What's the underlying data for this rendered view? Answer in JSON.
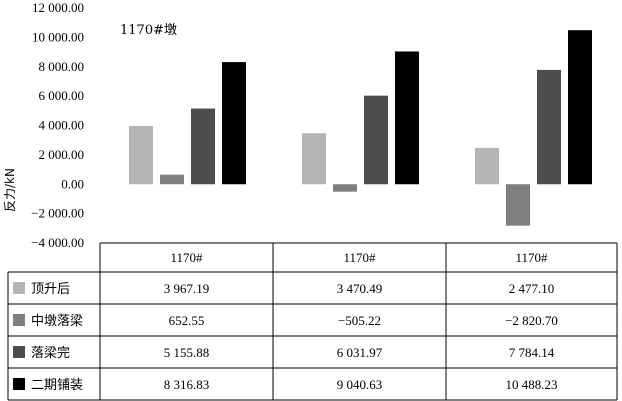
{
  "chart_data": {
    "type": "bar",
    "title": "",
    "annotation": "1170#墩",
    "ylabel": "反力/kN",
    "xlabel": "",
    "ylim": [
      -4000,
      12000
    ],
    "yticks": [
      "12 000.00",
      "10 000.00",
      "8 000.00",
      "6 000.00",
      "4 000.00",
      "2 000.00",
      "0.00",
      "−2 000.00",
      "−4 000.00"
    ],
    "ytick_values": [
      12000,
      10000,
      8000,
      6000,
      4000,
      2000,
      0,
      -2000,
      -4000
    ],
    "categories": [
      "1170#",
      "1170#",
      "1170#"
    ],
    "grid": false,
    "legend": "table-left",
    "series": [
      {
        "name": "顶升后",
        "color": "#b4b4b4",
        "values": [
          3967.19,
          3470.49,
          2477.1
        ],
        "labels": [
          "3 967.19",
          "3 470.49",
          "2 477.10"
        ]
      },
      {
        "name": "中墩落梁",
        "color": "#7f7f7f",
        "values": [
          652.55,
          -505.22,
          -2820.7
        ],
        "labels": [
          "652.55",
          "−505.22",
          "−2 820.70"
        ]
      },
      {
        "name": "落梁完",
        "color": "#4d4d4d",
        "values": [
          5155.88,
          6031.97,
          7784.14
        ],
        "labels": [
          "5 155.88",
          "6 031.97",
          "7 784.14"
        ]
      },
      {
        "name": "二期铺装",
        "color": "#000000",
        "values": [
          8316.83,
          9040.63,
          10488.23
        ],
        "labels": [
          "8 316.83",
          "9 040.63",
          "10 488.23"
        ]
      }
    ]
  }
}
